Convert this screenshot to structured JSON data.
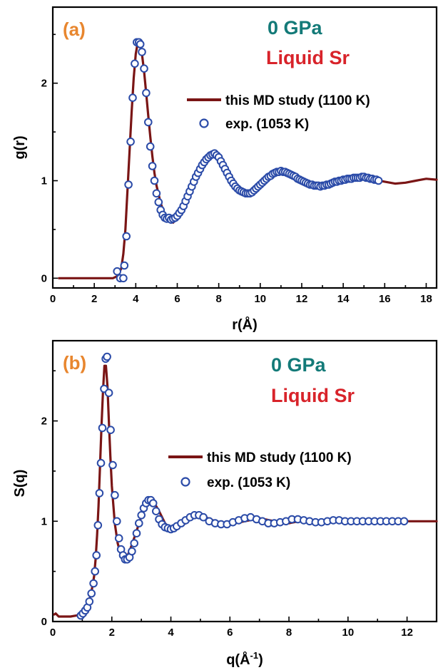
{
  "colors": {
    "md_line": "#7a1515",
    "exp_marker": "#2b4ba8",
    "panel_label": "#e8862e",
    "pressure": "#137a78",
    "material": "#d8232a"
  },
  "chart_data": [
    {
      "type": "line",
      "panel_label": "(a)",
      "pressure_text": "0 GPa",
      "material_text": "Liquid Sr",
      "xlabel": "r(Å)",
      "ylabel": "g(r)",
      "xlim": [
        0,
        18.5
      ],
      "ylim": [
        -0.1,
        2.78
      ],
      "xticks": [
        0,
        2,
        4,
        6,
        8,
        10,
        12,
        14,
        16,
        18
      ],
      "yticks": [
        0,
        1,
        2
      ],
      "legend_position": "upper-right",
      "series": [
        {
          "name": "this MD study (1100 K)",
          "style": "line",
          "x": [
            0.3,
            1.0,
            2.0,
            2.9,
            3.1,
            3.3,
            3.4,
            3.5,
            3.6,
            3.7,
            3.8,
            3.9,
            4.0,
            4.1,
            4.2,
            4.3,
            4.4,
            4.5,
            4.6,
            4.7,
            4.8,
            4.9,
            5.0,
            5.2,
            5.4,
            5.6,
            5.8,
            6.0,
            6.3,
            6.6,
            7.0,
            7.3,
            7.6,
            7.8,
            8.0,
            8.3,
            8.6,
            9.0,
            9.4,
            9.8,
            10.2,
            10.6,
            11.0,
            11.3,
            11.6,
            12.0,
            12.5,
            13.0,
            13.5,
            14.0,
            14.5,
            15.0,
            15.5,
            16.0,
            16.5,
            17.0,
            17.5,
            18.0,
            18.5
          ],
          "y": [
            0.0,
            0.0,
            0.0,
            0.0,
            0.02,
            0.1,
            0.25,
            0.5,
            0.9,
            1.3,
            1.7,
            2.05,
            2.3,
            2.42,
            2.4,
            2.3,
            2.12,
            1.9,
            1.67,
            1.45,
            1.25,
            1.08,
            0.95,
            0.77,
            0.65,
            0.6,
            0.57,
            0.62,
            0.78,
            0.95,
            1.12,
            1.22,
            1.27,
            1.27,
            1.24,
            1.12,
            0.99,
            0.89,
            0.87,
            0.92,
            1.0,
            1.06,
            1.09,
            1.09,
            1.06,
            1.0,
            0.96,
            0.94,
            0.97,
            1.0,
            1.02,
            1.03,
            1.01,
            0.99,
            0.97,
            0.98,
            1.0,
            1.02,
            1.01
          ]
        },
        {
          "name": "exp. (1053 K)",
          "style": "markers",
          "x": [
            3.1,
            3.25,
            3.4,
            3.45,
            3.55,
            3.65,
            3.75,
            3.85,
            3.95,
            4.05,
            4.15,
            4.22,
            4.3,
            4.4,
            4.5,
            4.6,
            4.7,
            4.8,
            4.9,
            5.0,
            5.1,
            5.2,
            5.3,
            5.4,
            5.5,
            5.6,
            5.7,
            5.8,
            5.9,
            6.0,
            6.1,
            6.2,
            6.3,
            6.4,
            6.5,
            6.6,
            6.7,
            6.8,
            6.9,
            7.0,
            7.1,
            7.2,
            7.3,
            7.4,
            7.5,
            7.6,
            7.7,
            7.8,
            7.9,
            8.0,
            8.1,
            8.2,
            8.3,
            8.4,
            8.5,
            8.6,
            8.7,
            8.8,
            8.9,
            9.0,
            9.1,
            9.2,
            9.3,
            9.4,
            9.5,
            9.6,
            9.7,
            9.8,
            9.9,
            10.0,
            10.1,
            10.2,
            10.3,
            10.4,
            10.5,
            10.6,
            10.7,
            10.8,
            10.9,
            11.0,
            11.1,
            11.2,
            11.3,
            11.4,
            11.5,
            11.6,
            11.7,
            11.8,
            11.9,
            12.0,
            12.1,
            12.2,
            12.3,
            12.4,
            12.5,
            12.6,
            12.7,
            12.8,
            12.9,
            13.0,
            13.1,
            13.2,
            13.3,
            13.4,
            13.5,
            13.6,
            13.7,
            13.8,
            13.9,
            14.0,
            14.1,
            14.2,
            14.3,
            14.4,
            14.5,
            14.6,
            14.7,
            14.8,
            14.9,
            15.0,
            15.1,
            15.2,
            15.3,
            15.4,
            15.5,
            15.6,
            15.7
          ],
          "y": [
            0.07,
            0.0,
            0.0,
            0.13,
            0.43,
            0.96,
            1.4,
            1.85,
            2.2,
            2.42,
            2.42,
            2.4,
            2.32,
            2.15,
            1.9,
            1.6,
            1.35,
            1.15,
            1.0,
            0.87,
            0.78,
            0.7,
            0.65,
            0.62,
            0.61,
            0.62,
            0.6,
            0.61,
            0.62,
            0.64,
            0.67,
            0.7,
            0.74,
            0.79,
            0.84,
            0.89,
            0.94,
            0.99,
            1.04,
            1.08,
            1.12,
            1.16,
            1.19,
            1.22,
            1.24,
            1.26,
            1.27,
            1.28,
            1.26,
            1.24,
            1.2,
            1.16,
            1.12,
            1.08,
            1.04,
            1.0,
            0.97,
            0.94,
            0.92,
            0.9,
            0.89,
            0.88,
            0.87,
            0.87,
            0.87,
            0.88,
            0.9,
            0.92,
            0.94,
            0.96,
            0.98,
            1.0,
            1.02,
            1.04,
            1.05,
            1.07,
            1.08,
            1.09,
            1.09,
            1.1,
            1.09,
            1.09,
            1.08,
            1.07,
            1.06,
            1.05,
            1.04,
            1.02,
            1.01,
            1.0,
            0.99,
            0.98,
            0.97,
            0.96,
            0.96,
            0.95,
            0.95,
            0.95,
            0.94,
            0.95,
            0.95,
            0.96,
            0.96,
            0.97,
            0.98,
            0.99,
            0.99,
            1.0,
            1.0,
            1.01,
            1.01,
            1.02,
            1.02,
            1.02,
            1.03,
            1.03,
            1.03,
            1.03,
            1.04,
            1.04,
            1.03,
            1.03,
            1.02,
            1.02,
            1.01,
            1.01,
            1.0
          ]
        }
      ]
    },
    {
      "type": "line",
      "panel_label": "(b)",
      "pressure_text": "0 GPa",
      "material_text": "Liquid Sr",
      "xlabel_base": "q(Å",
      "xlabel_sup": "-1",
      "xlabel_close": ")",
      "ylabel": "S(q)",
      "xlim": [
        0,
        13
      ],
      "ylim": [
        0,
        2.8
      ],
      "xticks": [
        0,
        2,
        4,
        6,
        8,
        10,
        12
      ],
      "yticks": [
        0,
        1,
        2
      ],
      "legend_position": "upper-right",
      "series": [
        {
          "name": "this MD study (1100 K)",
          "style": "line",
          "x": [
            0.05,
            0.1,
            0.2,
            0.4,
            0.6,
            0.8,
            0.9,
            1.0,
            1.1,
            1.2,
            1.3,
            1.4,
            1.45,
            1.5,
            1.55,
            1.6,
            1.65,
            1.7,
            1.75,
            1.8,
            1.85,
            1.9,
            1.95,
            2.0,
            2.1,
            2.2,
            2.3,
            2.4,
            2.5,
            2.6,
            2.8,
            3.0,
            3.2,
            3.4,
            3.6,
            3.8,
            4.0,
            4.2,
            4.5,
            4.8,
            5.1,
            5.5,
            6.0,
            6.5,
            7.0,
            7.5,
            8.0,
            8.5,
            9.0,
            9.5,
            10.0,
            10.5,
            11.0,
            11.5,
            12.0,
            12.5,
            13.0
          ],
          "y": [
            0.07,
            0.08,
            0.05,
            0.05,
            0.05,
            0.06,
            0.07,
            0.09,
            0.13,
            0.18,
            0.28,
            0.45,
            0.62,
            0.86,
            1.15,
            1.55,
            1.95,
            2.3,
            2.55,
            2.55,
            2.35,
            2.0,
            1.65,
            1.35,
            0.98,
            0.78,
            0.67,
            0.63,
            0.64,
            0.7,
            0.87,
            1.05,
            1.18,
            1.2,
            1.1,
            0.98,
            0.92,
            0.93,
            0.98,
            1.05,
            1.05,
            1.0,
            0.97,
            1.0,
            1.03,
            1.0,
            0.98,
            1.01,
            1.0,
            0.99,
            1.01,
            1.0,
            0.99,
            1.0,
            1.0,
            1.0,
            1.0
          ]
        },
        {
          "name": "exp. (1053 K)",
          "style": "markers",
          "x": [
            0.95,
            1.02,
            1.1,
            1.17,
            1.24,
            1.31,
            1.38,
            1.43,
            1.48,
            1.53,
            1.58,
            1.63,
            1.68,
            1.74,
            1.79,
            1.84,
            1.9,
            1.96,
            2.03,
            2.1,
            2.17,
            2.24,
            2.31,
            2.38,
            2.45,
            2.52,
            2.6,
            2.68,
            2.76,
            2.84,
            2.92,
            3.0,
            3.08,
            3.16,
            3.24,
            3.32,
            3.4,
            3.5,
            3.6,
            3.7,
            3.8,
            3.9,
            4.0,
            4.1,
            4.2,
            4.35,
            4.5,
            4.65,
            4.8,
            4.95,
            5.1,
            5.3,
            5.5,
            5.7,
            5.9,
            6.1,
            6.3,
            6.5,
            6.7,
            6.9,
            7.1,
            7.3,
            7.5,
            7.7,
            7.9,
            8.1,
            8.3,
            8.5,
            8.7,
            8.9,
            9.1,
            9.3,
            9.5,
            9.7,
            9.9,
            10.1,
            10.3,
            10.5,
            10.7,
            10.9,
            11.1,
            11.3,
            11.5,
            11.7,
            11.9
          ],
          "y": [
            0.06,
            0.08,
            0.11,
            0.14,
            0.2,
            0.28,
            0.38,
            0.5,
            0.66,
            0.96,
            1.28,
            1.58,
            1.93,
            2.32,
            2.62,
            2.64,
            2.28,
            1.91,
            1.56,
            1.26,
            1.0,
            0.83,
            0.72,
            0.66,
            0.62,
            0.62,
            0.64,
            0.7,
            0.78,
            0.88,
            0.98,
            1.06,
            1.13,
            1.18,
            1.21,
            1.21,
            1.18,
            1.1,
            1.02,
            0.97,
            0.94,
            0.93,
            0.92,
            0.93,
            0.95,
            0.98,
            1.01,
            1.04,
            1.06,
            1.06,
            1.04,
            1.0,
            0.98,
            0.97,
            0.97,
            0.99,
            1.01,
            1.03,
            1.04,
            1.02,
            1.0,
            0.98,
            0.98,
            0.99,
            1.0,
            1.02,
            1.02,
            1.01,
            1.0,
            0.99,
            0.99,
            1.0,
            1.01,
            1.01,
            1.0,
            1.0,
            1.0,
            1.0,
            1.0,
            1.0,
            1.0,
            1.0,
            1.0,
            1.0,
            1.0
          ]
        }
      ]
    }
  ]
}
